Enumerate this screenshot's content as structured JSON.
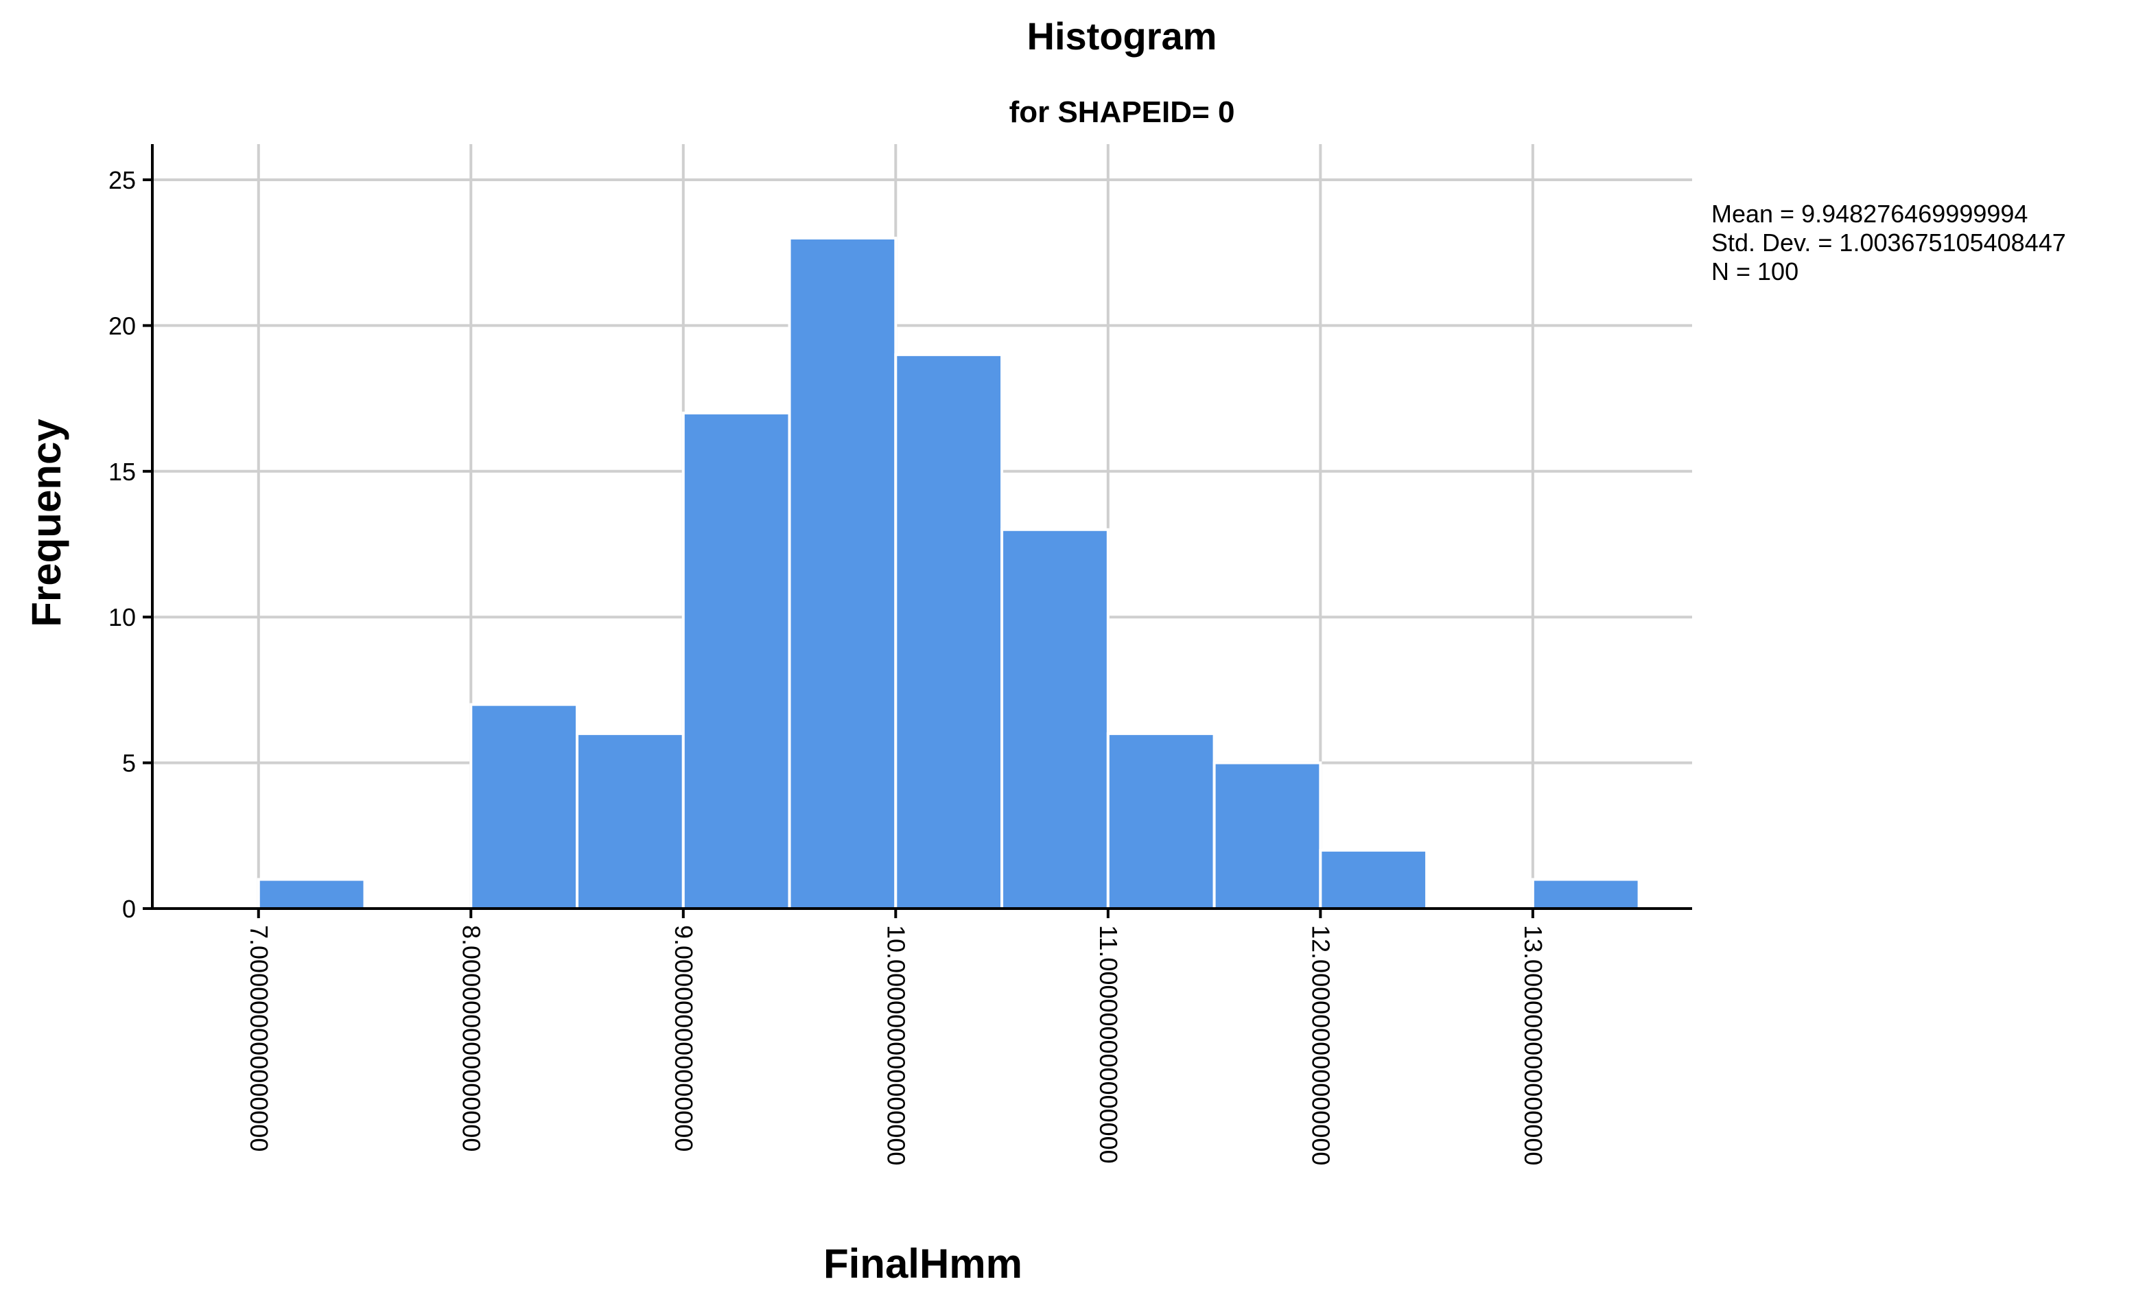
{
  "chart_data": {
    "type": "bar",
    "title": "Histogram",
    "subtitle": "for SHAPEID= 0",
    "xlabel": "FinalHmm",
    "ylabel": "Frequency",
    "xlim": [
      6.5,
      13.75
    ],
    "ylim": [
      0,
      25
    ],
    "x_ticks": [
      7,
      8,
      9,
      10,
      11,
      12,
      13
    ],
    "x_tick_labels": [
      "7.000000000000000",
      "8.000000000000000",
      "9.000000000000000",
      "10.000000000000000",
      "11.000000000000000",
      "12.000000000000000",
      "13.000000000000000"
    ],
    "y_ticks": [
      0,
      5,
      10,
      15,
      20,
      25
    ],
    "y_tick_labels": [
      "0",
      "5",
      "10",
      "15",
      "20",
      "25"
    ],
    "bin_width": 0.5,
    "bins": [
      {
        "start": 7.0,
        "end": 7.5,
        "count": 1
      },
      {
        "start": 7.5,
        "end": 8.0,
        "count": 0
      },
      {
        "start": 8.0,
        "end": 8.5,
        "count": 7
      },
      {
        "start": 8.5,
        "end": 9.0,
        "count": 6
      },
      {
        "start": 9.0,
        "end": 9.5,
        "count": 17
      },
      {
        "start": 9.5,
        "end": 10.0,
        "count": 23
      },
      {
        "start": 10.0,
        "end": 10.5,
        "count": 19
      },
      {
        "start": 10.5,
        "end": 11.0,
        "count": 13
      },
      {
        "start": 11.0,
        "end": 11.5,
        "count": 6
      },
      {
        "start": 11.5,
        "end": 12.0,
        "count": 5
      },
      {
        "start": 12.0,
        "end": 12.5,
        "count": 2
      },
      {
        "start": 12.5,
        "end": 13.0,
        "count": 0
      },
      {
        "start": 13.0,
        "end": 13.5,
        "count": 1
      }
    ],
    "bar_color": "#5596e6",
    "grid": true,
    "stats": {
      "mean": "Mean = 9.948276469999994",
      "std_dev": "Std. Dev. = 1.003675105408447",
      "n": "N = 100"
    }
  }
}
